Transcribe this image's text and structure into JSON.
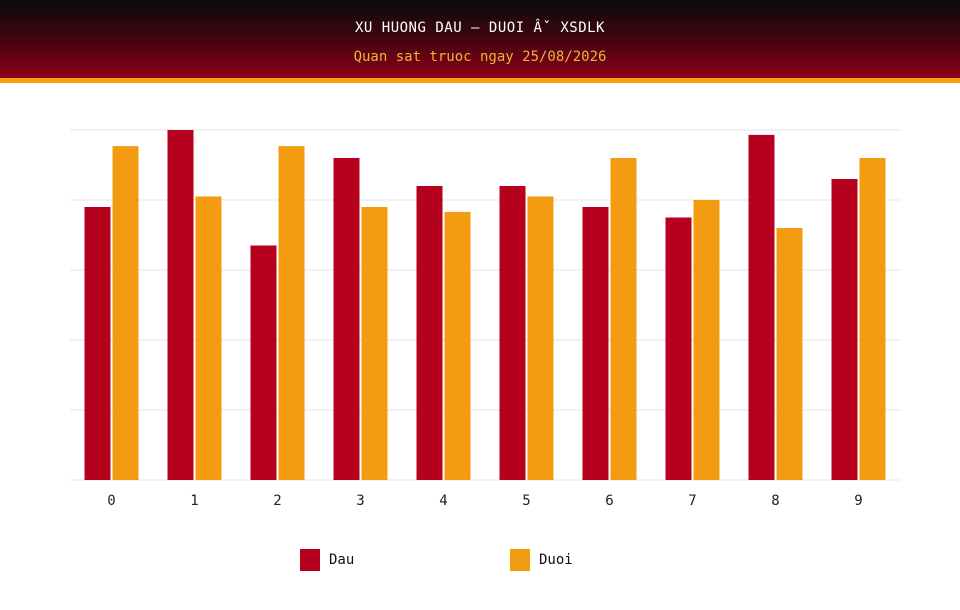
{
  "header": {
    "title": "XU HUONG DAU – DUOI Âˇ XSDLK",
    "subtitle": "Quan sat truoc ngay 25/08/2026"
  },
  "colors": {
    "dau": "#b5001e",
    "duoi": "#f39c12",
    "grid": "#e6e6e6"
  },
  "chart_data": {
    "type": "bar",
    "categories": [
      "0",
      "1",
      "2",
      "3",
      "4",
      "5",
      "6",
      "7",
      "8",
      "9"
    ],
    "series": [
      {
        "name": "Dau",
        "values": [
          39,
          50,
          33.5,
          46,
          42,
          42,
          39,
          37.5,
          49.3,
          43
        ]
      },
      {
        "name": "Duoi",
        "values": [
          47.7,
          40.5,
          47.7,
          39,
          38.3,
          40.5,
          46,
          40,
          36,
          46
        ]
      }
    ],
    "ylim": [
      0,
      50
    ],
    "grid": true,
    "legend": "bottom"
  }
}
